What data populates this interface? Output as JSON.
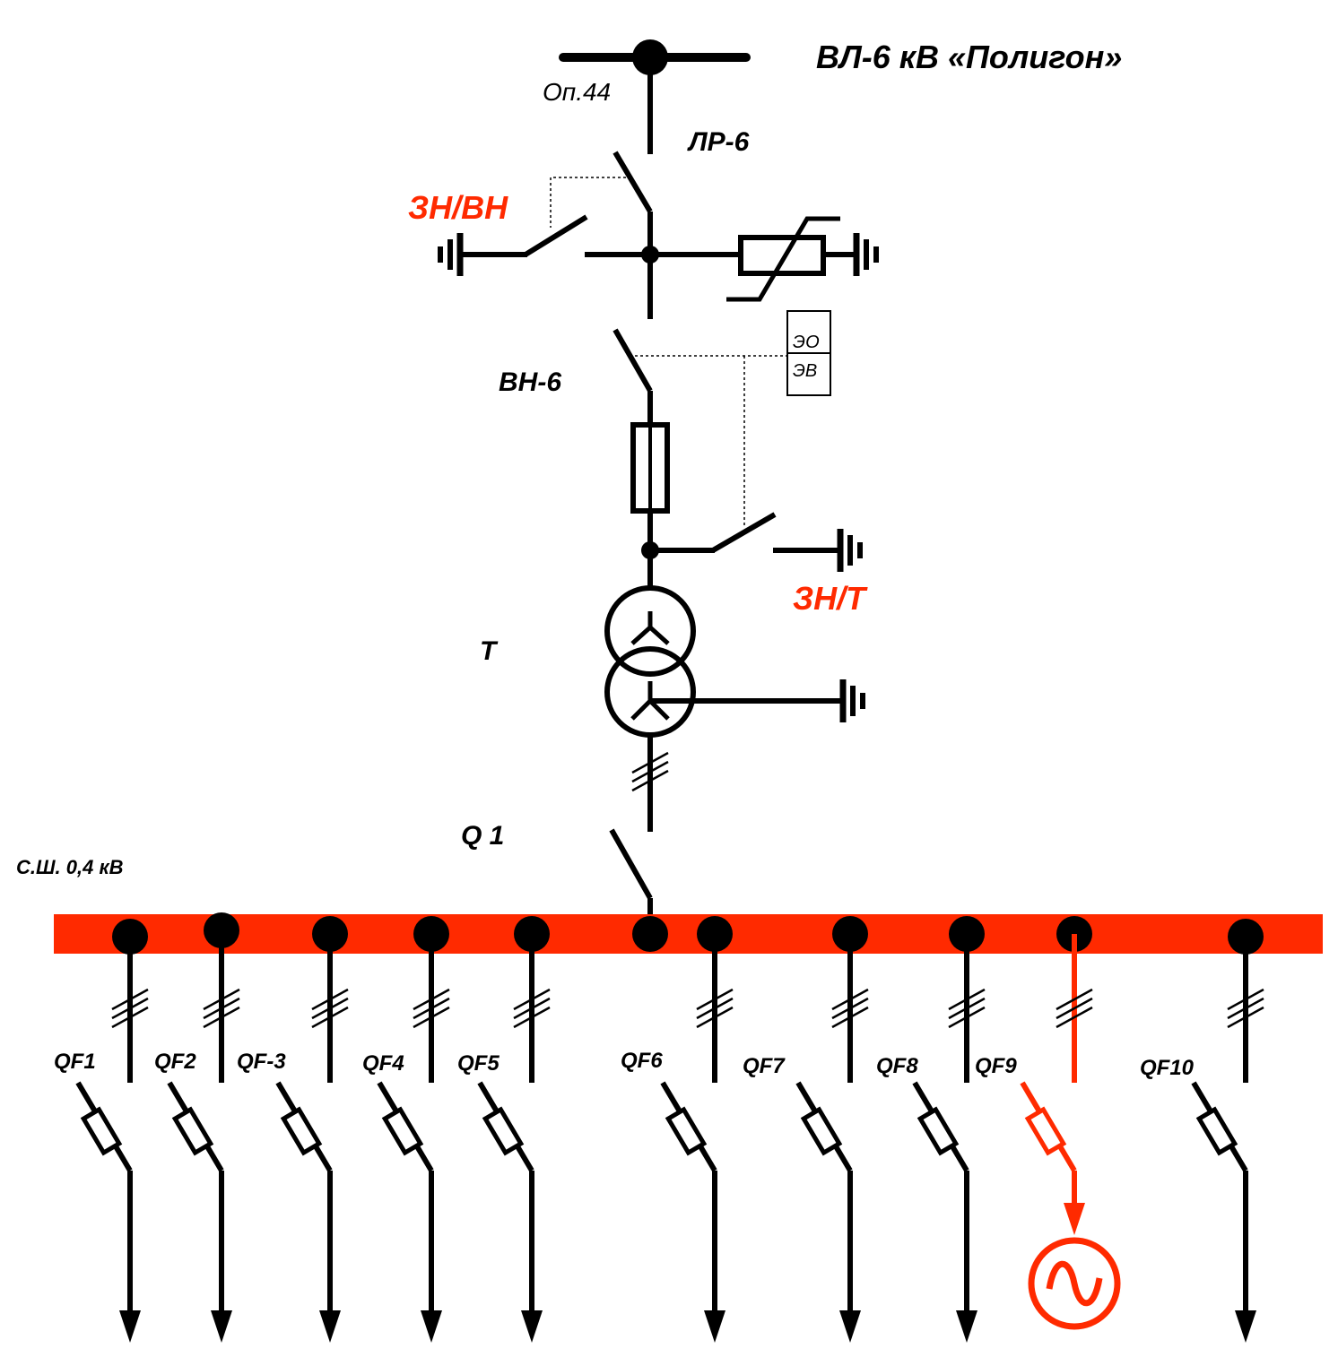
{
  "colors": {
    "wire": "#000000",
    "highlight": "#ff2a00",
    "background": "#ffffff"
  },
  "labels": {
    "line_name": "ВЛ-6 кВ «Полигон»",
    "support": "Оп.44",
    "disconnector": "ЛР-6",
    "earthing_hv": "ЗН/ВН",
    "load_switch": "ВН-6",
    "drive_open": "ЭО",
    "drive_close": "ЭВ",
    "earthing_t": "ЗН/Т",
    "transformer": "Т",
    "main_breaker": "Q 1",
    "busbar": "С.Ш. 0,4 кВ"
  },
  "feeders": [
    {
      "name": "QF1",
      "highlight": false
    },
    {
      "name": "QF2",
      "highlight": false
    },
    {
      "name": "QF-3",
      "highlight": false
    },
    {
      "name": "QF4",
      "highlight": false
    },
    {
      "name": "QF5",
      "highlight": false
    },
    {
      "name": "QF6",
      "highlight": false
    },
    {
      "name": "QF7",
      "highlight": false
    },
    {
      "name": "QF8",
      "highlight": false
    },
    {
      "name": "QF9",
      "highlight": true,
      "load": "generator-icon"
    },
    {
      "name": "QF10",
      "highlight": false
    }
  ]
}
